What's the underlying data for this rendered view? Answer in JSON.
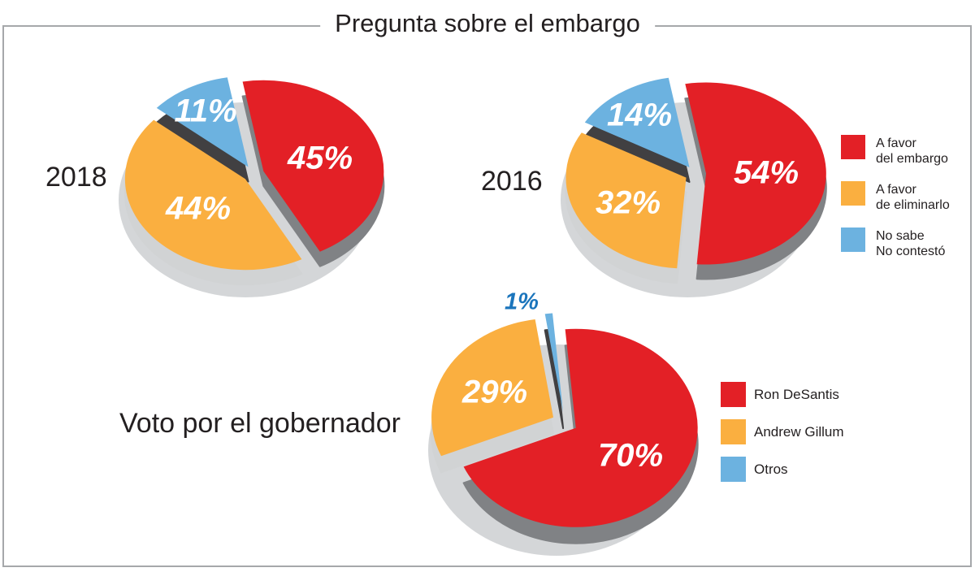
{
  "title": "Pregunta sobre el embargo",
  "chart_data": [
    {
      "type": "pie",
      "title": "2018",
      "categories": [
        "A favor del embargo",
        "A favor de eliminarlo",
        "No sabe / No contestó"
      ],
      "values": [
        45,
        44,
        11
      ],
      "value_labels": [
        "45%",
        "44%",
        "11%"
      ],
      "colors": [
        "#E32026",
        "#FAAF40",
        "#6CB2E0"
      ],
      "legend_position": "right",
      "style": "3d-exploded"
    },
    {
      "type": "pie",
      "title": "2016",
      "categories": [
        "A favor del embargo",
        "A favor de eliminarlo",
        "No sabe / No contestó"
      ],
      "values": [
        54,
        32,
        14
      ],
      "value_labels": [
        "54%",
        "32%",
        "14%"
      ],
      "colors": [
        "#E32026",
        "#FAAF40",
        "#6CB2E0"
      ],
      "legend_position": "right",
      "style": "3d-exploded"
    },
    {
      "type": "pie",
      "title": "Voto por el gobernador",
      "categories": [
        "Ron DeSantis",
        "Andrew Gillum",
        "Otros"
      ],
      "values": [
        70,
        29,
        1
      ],
      "value_labels": [
        "70%",
        "29%",
        "1%"
      ],
      "colors": [
        "#E32026",
        "#FAAF40",
        "#6CB2E0"
      ],
      "outside_label_color": "#1B75BC",
      "legend_position": "right",
      "style": "3d-exploded"
    }
  ],
  "legends": {
    "embargo": {
      "items": [
        {
          "label": "A favor\ndel embargo",
          "color": "#E32026"
        },
        {
          "label": "A favor\nde eliminarlo",
          "color": "#FAAF40"
        },
        {
          "label": "No sabe\nNo contestó",
          "color": "#6CB2E0"
        }
      ]
    },
    "governor": {
      "items": [
        {
          "label": "Ron DeSantis",
          "color": "#E32026"
        },
        {
          "label": "Andrew Gillum",
          "color": "#FAAF40"
        },
        {
          "label": "Otros",
          "color": "#6CB2E0"
        }
      ]
    }
  },
  "style_colors": {
    "accent_red": "#E32026",
    "accent_orange": "#FAAF40",
    "accent_blue": "#6CB2E0",
    "outside_label_blue": "#1B75BC",
    "wall_charcoal": "#414042",
    "wall_gray": "#808285",
    "shadow_gray": "#D4D6D8",
    "border_gray": "#A6A8AB",
    "text_dark": "#231F20"
  }
}
